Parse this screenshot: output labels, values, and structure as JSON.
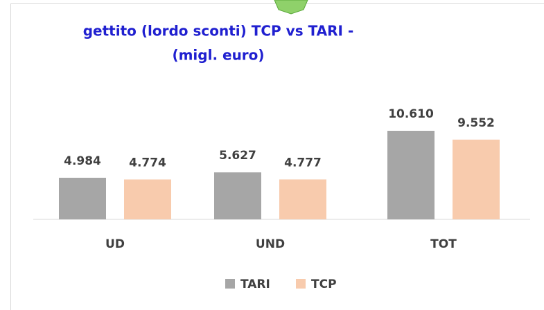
{
  "chart_data": {
    "type": "bar",
    "title": [
      "gettito (lordo sconti) TCP vs TARI -",
      "(migl. euro)"
    ],
    "categories": [
      "UD",
      "UND",
      "TOT"
    ],
    "series": [
      {
        "name": "TARI",
        "color": "#a6a6a6",
        "values": [
          4984,
          5627,
          10610
        ],
        "value_labels": [
          "4.984",
          "5.627",
          "10.610"
        ]
      },
      {
        "name": "TCP",
        "color": "#f8cbad",
        "values": [
          4774,
          4777,
          9552
        ],
        "value_labels": [
          "4.774",
          "4.777",
          "9.552"
        ]
      }
    ],
    "legend": "bottom"
  }
}
